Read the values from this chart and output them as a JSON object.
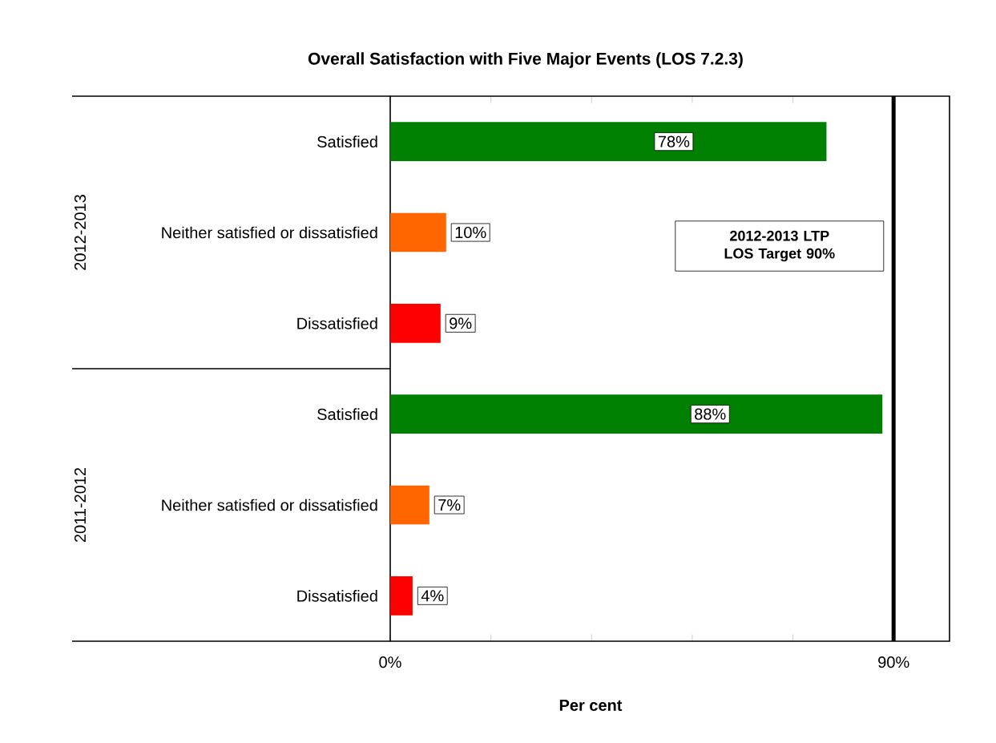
{
  "chart_data": {
    "type": "bar",
    "orientation": "horizontal",
    "title": "Overall Satisfaction with Five Major Events (LOS 7.2.3)",
    "xlabel": "Per cent",
    "categories": [
      "Satisfied",
      "Neither satisfied or dissatisfied",
      "Dissatisfied",
      "Satisfied",
      "Neither satisfied or dissatisfied",
      "Dissatisfied"
    ],
    "values": [
      78,
      10,
      9,
      88,
      7,
      4
    ],
    "colors": [
      "#008000",
      "#ff6600",
      "#ff0000",
      "#008000",
      "#ff6600",
      "#ff0000"
    ],
    "value_labels": [
      "78%",
      "10%",
      "9%",
      "88%",
      "7%",
      "4%"
    ],
    "xlim": [
      0,
      100
    ],
    "xticks": [
      {
        "value": 0,
        "label": "0%"
      },
      {
        "value": 18,
        "label": null
      },
      {
        "value": 36,
        "label": null
      },
      {
        "value": 54,
        "label": null
      },
      {
        "value": 72,
        "label": null
      },
      {
        "value": 90,
        "label": "90%"
      }
    ],
    "ref_lines": [
      {
        "axis": "x",
        "value": 90,
        "label": "2012-2013 LTP LOS Target 90%",
        "color": "#000000"
      }
    ],
    "annotations": [
      "2012-2013",
      "2011-2012"
    ],
    "grid": false
  }
}
